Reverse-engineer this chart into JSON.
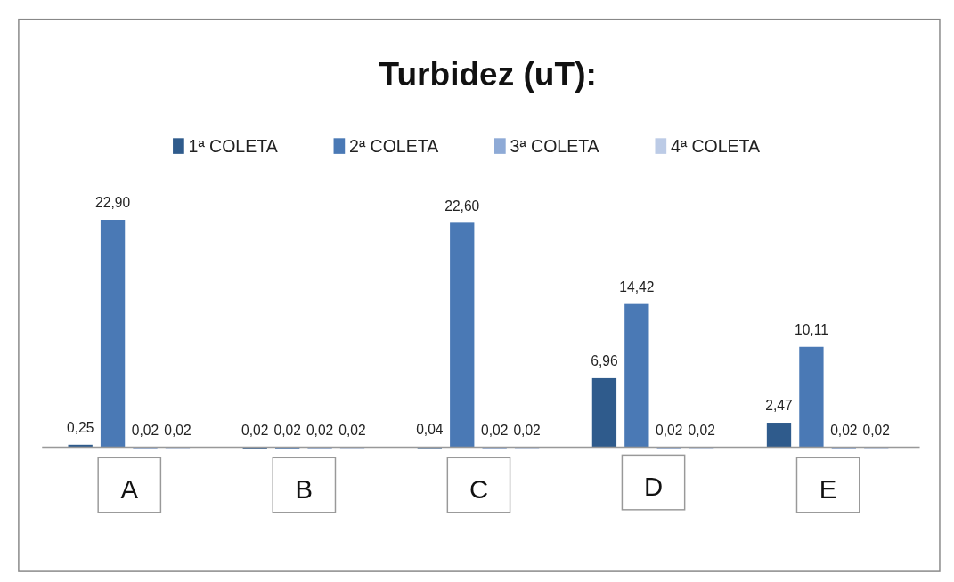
{
  "chart_data": {
    "type": "bar",
    "title": "Turbidez (uT):",
    "categories": [
      "A",
      "B",
      "C",
      "D",
      "E"
    ],
    "legend": "top",
    "data_labels": true,
    "series": [
      {
        "name": "1ª COLETA",
        "color": "#2f5b8c",
        "values": [
          0.25,
          0.02,
          0.04,
          6.96,
          2.47
        ],
        "value_labels": [
          "0,25",
          "0,02",
          "0,04",
          "6,96",
          "2,47"
        ]
      },
      {
        "name": "2ª COLETA",
        "color": "#4a79b5",
        "values": [
          22.9,
          0.02,
          22.6,
          14.42,
          10.11
        ],
        "value_labels": [
          "22,90",
          "0,02",
          "22,60",
          "14,42",
          "10,11"
        ]
      },
      {
        "name": "3ª COLETA",
        "color": "#8eaad6",
        "values": [
          0.02,
          0.02,
          0.02,
          0.02,
          0.02
        ],
        "value_labels": [
          "0,02",
          "0,02",
          "0,02",
          "0,02",
          "0,02"
        ]
      },
      {
        "name": "4ª COLETA",
        "color": "#bccbe6",
        "values": [
          0.02,
          0.02,
          0.02,
          0.02,
          0.02
        ],
        "value_labels": [
          "0,02",
          "0,02",
          "0,02",
          "0,02",
          "0,02"
        ]
      }
    ]
  }
}
